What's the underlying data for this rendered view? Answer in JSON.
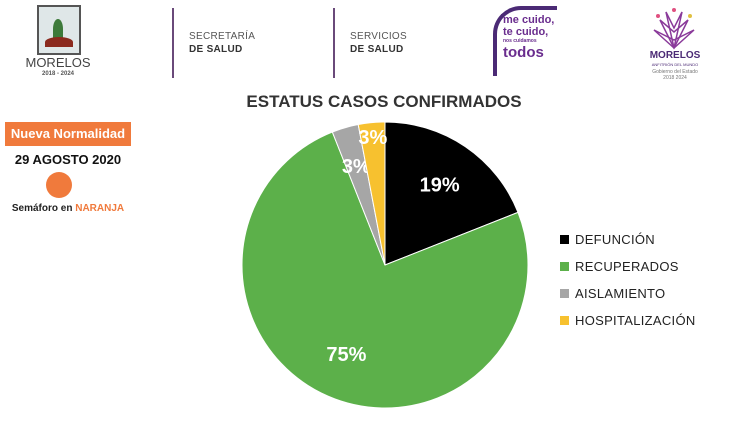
{
  "header": {
    "logo_morelos": {
      "name": "MORELOS",
      "years": "2018 - 2024"
    },
    "secretaria": {
      "line1": "SECRETARÍA",
      "line2": "DE SALUD"
    },
    "servicios": {
      "line1": "SERVICIOS",
      "line2": "DE SALUD"
    },
    "campaign": {
      "line1": "me cuido,",
      "line2": "te cuido,",
      "line3": "nos cuidamos",
      "line4": "todos"
    },
    "gov_logo": {
      "name": "MORELOS",
      "tagline": "ANFITRIÓN DEL MUNDO",
      "sub": "Gobierno del Estado",
      "years": "2018 2024"
    }
  },
  "status": {
    "badge": "Nueva Normalidad",
    "date": "29 AGOSTO 2020",
    "semaforo_label": "Semáforo en ",
    "semaforo_value": "NARANJA",
    "semaforo_color": "#f07a3c"
  },
  "chart_data": {
    "type": "pie",
    "title": "ESTATUS CASOS CONFIRMADOS",
    "categories": [
      "DEFUNCIÓN",
      "RECUPERADOS",
      "AISLAMIENTO",
      "HOSPITALIZACIÓN"
    ],
    "values": [
      19,
      75,
      3,
      3
    ],
    "labels": [
      "19%",
      "75%",
      "3%",
      "3%"
    ],
    "colors": [
      "#000000",
      "#5cb04a",
      "#a6a6a6",
      "#f7c12f"
    ],
    "legend_position": "right"
  }
}
